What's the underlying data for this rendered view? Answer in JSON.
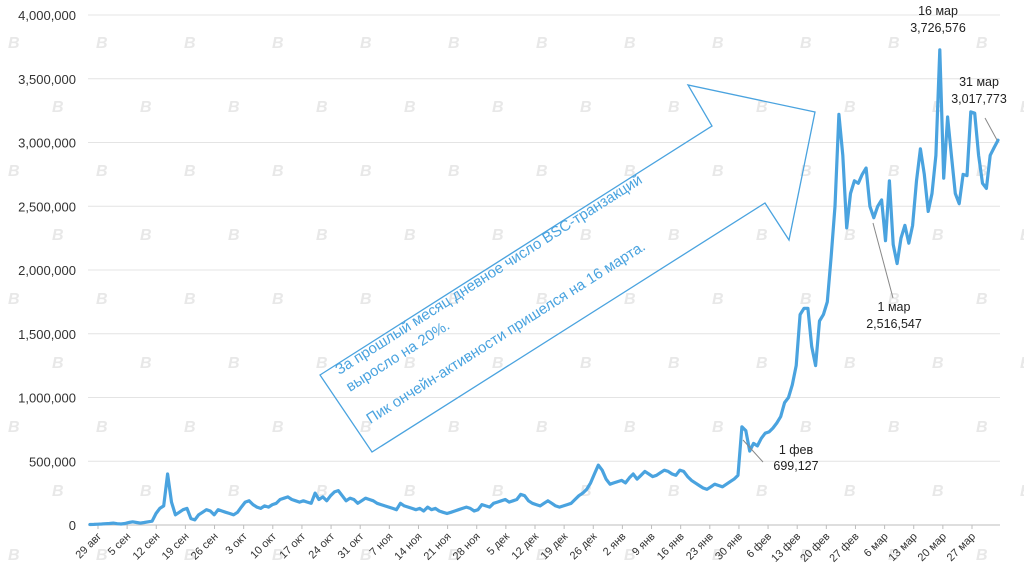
{
  "chart_data": {
    "type": "line",
    "title": "",
    "xlabel": "",
    "ylabel": "",
    "ylim": [
      0,
      4000000
    ],
    "y_ticks": [
      0,
      500000,
      1000000,
      1500000,
      2000000,
      2500000,
      3000000,
      3500000,
      4000000
    ],
    "y_tick_labels": [
      "0",
      "500,000",
      "1,000,000",
      "1,500,000",
      "2,000,000",
      "2,500,000",
      "3,000,000",
      "3,500,000",
      "4,000,000"
    ],
    "x_tick_labels": [
      "29 авг",
      "5 сен",
      "12 сен",
      "19 сен",
      "26 сен",
      "3 окт",
      "10 окт",
      "17 окт",
      "24 окт",
      "31 окт",
      "7 ноя",
      "14 ноя",
      "21 ноя",
      "28 ноя",
      "5 дек",
      "12 дек",
      "19 дек",
      "26 дек",
      "2 янв",
      "9 янв",
      "16 янв",
      "23 янв",
      "30 янв",
      "6 фев",
      "13 фев",
      "20 фев",
      "27 фев",
      "6 мар",
      "13 мар",
      "20 мар",
      "27 мар"
    ],
    "line_color": "#4aa3df",
    "grid": true,
    "series": [
      {
        "values": [
          4000,
          5000,
          6000,
          8000,
          10000,
          12000,
          15000,
          10000,
          8000,
          12000,
          20000,
          25000,
          20000,
          15000,
          20000,
          25000,
          30000,
          90000,
          130000,
          150000,
          400000,
          180000,
          80000,
          100000,
          120000,
          130000,
          50000,
          40000,
          80000,
          100000,
          120000,
          110000,
          80000,
          120000,
          110000,
          100000,
          90000,
          80000,
          100000,
          140000,
          180000,
          190000,
          160000,
          140000,
          130000,
          150000,
          140000,
          160000,
          170000,
          200000,
          210000,
          220000,
          200000,
          190000,
          180000,
          190000,
          180000,
          170000,
          250000,
          200000,
          220000,
          190000,
          230000,
          260000,
          270000,
          230000,
          190000,
          210000,
          200000,
          170000,
          190000,
          210000,
          200000,
          190000,
          170000,
          160000,
          150000,
          140000,
          130000,
          120000,
          170000,
          150000,
          140000,
          130000,
          120000,
          130000,
          110000,
          140000,
          120000,
          130000,
          110000,
          100000,
          90000,
          100000,
          110000,
          120000,
          130000,
          140000,
          130000,
          110000,
          120000,
          160000,
          150000,
          140000,
          170000,
          180000,
          190000,
          200000,
          180000,
          190000,
          200000,
          240000,
          230000,
          190000,
          170000,
          160000,
          150000,
          170000,
          190000,
          170000,
          150000,
          140000,
          150000,
          160000,
          170000,
          200000,
          230000,
          250000,
          280000,
          330000,
          400000,
          470000,
          430000,
          360000,
          320000,
          330000,
          340000,
          350000,
          330000,
          370000,
          400000,
          360000,
          390000,
          420000,
          400000,
          380000,
          390000,
          410000,
          430000,
          420000,
          400000,
          390000,
          430000,
          420000,
          380000,
          350000,
          330000,
          310000,
          290000,
          280000,
          300000,
          320000,
          310000,
          300000,
          320000,
          340000,
          360000,
          390000,
          770000,
          740000,
          580000,
          640000,
          620000,
          680000,
          720000,
          730000,
          760000,
          800000,
          850000,
          960000,
          1000000,
          1100000,
          1250000,
          1650000,
          1700000,
          1700000,
          1400000,
          1250000,
          1600000,
          1650000,
          1750000,
          2100000,
          2500000,
          3220000,
          2900000,
          2330000,
          2600000,
          2700000,
          2680000,
          2750000,
          2800000,
          2500000,
          2410000,
          2500000,
          2550000,
          2230000,
          2700000,
          2200000,
          2050000,
          2250000,
          2350000,
          2210000,
          2350000,
          2700000,
          2950000,
          2750000,
          2460000,
          2600000,
          2900000,
          3726576,
          2720000,
          3200000,
          2900000,
          2600000,
          2520000,
          2750000,
          2740000,
          3240000,
          3230000,
          2900000,
          2680000,
          2640000,
          2900000,
          2960000,
          3017773
        ]
      }
    ],
    "annotations": [
      {
        "label": "1 фев",
        "value": "699,127"
      },
      {
        "label": "1 мар",
        "value": "2,516,547"
      },
      {
        "label": "16 мар",
        "value": "3,726,576"
      },
      {
        "label": "31 мар",
        "value": "3,017,773"
      }
    ],
    "callout": {
      "line1": "За прошлый месяц дневное число BSC-транзакций",
      "line2": "выросло на 20%.",
      "line3": "Пик ончейн-активности пришелся на 16 марта."
    }
  }
}
